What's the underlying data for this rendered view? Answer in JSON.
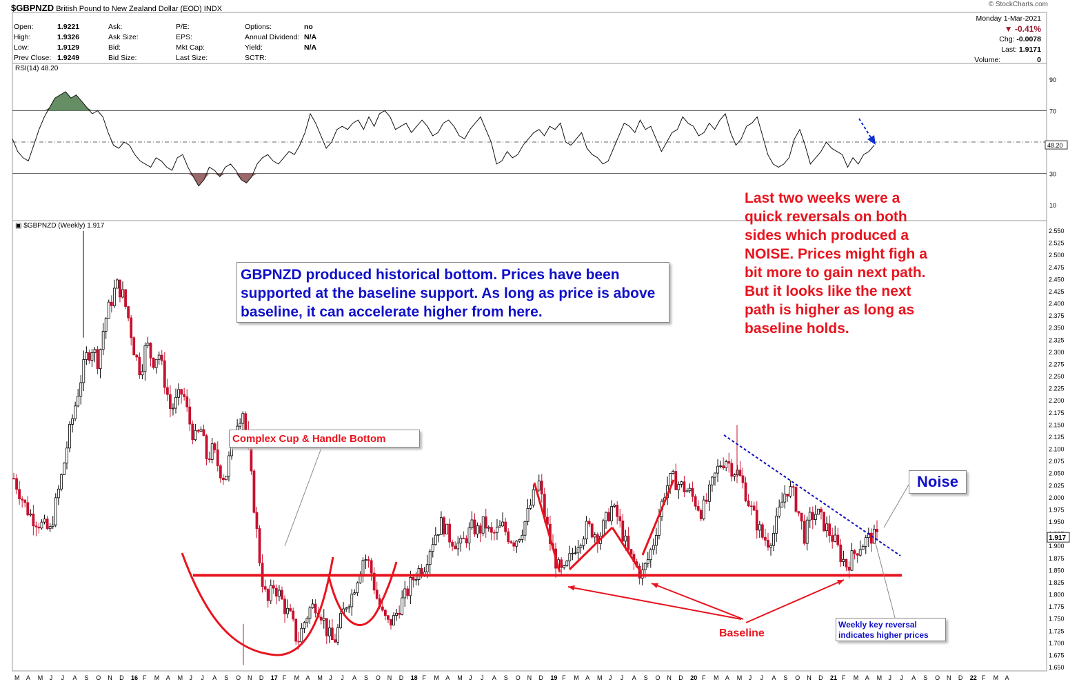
{
  "header": {
    "symbol": "$GBPNZD",
    "name": "British Pound to New Zealand Dollar (EOD)",
    "exchange": "INDX",
    "brand": "© StockCharts.com",
    "date": "Monday  1-Mar-2021",
    "pct_change": "▼  -0.41%",
    "chg_label": "Chg:",
    "chg_value": "-0.0078",
    "last_label": "Last:",
    "last_value": "1.9171",
    "volume_label": "Volume:",
    "volume_value": "0",
    "stats": [
      {
        "label": "Open:",
        "value": "1.9221"
      },
      {
        "label": "High:",
        "value": "1.9326"
      },
      {
        "label": "Low:",
        "value": "1.9129"
      },
      {
        "label": "Prev Close:",
        "value": "1.9249"
      },
      {
        "label": "Ask:",
        "value": ""
      },
      {
        "label": "Ask Size:",
        "value": ""
      },
      {
        "label": "Bid:",
        "value": ""
      },
      {
        "label": "Bid Size:",
        "value": ""
      },
      {
        "label": "P/E:",
        "value": ""
      },
      {
        "label": "EPS:",
        "value": ""
      },
      {
        "label": "Mkt Cap:",
        "value": ""
      },
      {
        "label": "Last Size:",
        "value": ""
      },
      {
        "label": "Options:",
        "value": "no"
      },
      {
        "label": "Annual Dividend:",
        "value": "N/A"
      },
      {
        "label": "Yield:",
        "value": "N/A"
      },
      {
        "label": "SCTR:",
        "value": ""
      }
    ]
  },
  "annotations": {
    "blue_note": "GBPNZD produced historical bottom. Prices have been supported at the baseline support. As long as price is above baseline, it can accelerate higher from here.",
    "red_note": "Last two weeks were a\nquick reversals on both\nsides which produced a\nNOISE. Prices might figh a\nbit more to gain next path.\nBut it looks like the next\npath is higher as long as\nbaseline holds.",
    "cup_label": "Complex Cup & Handle Bottom",
    "noise_label": "Noise",
    "reversal_label": "Weekly key reversal indicates higher prices",
    "baseline_label": "Baseline"
  },
  "colors": {
    "up": "#000000",
    "down": "#c8102e",
    "annot_red": "#e8141e",
    "annot_blue": "#1010c8",
    "rsi_over": "#4a7a4a",
    "rsi_under": "#8b5050"
  },
  "chart_data": [
    {
      "type": "line",
      "title": "RSI(14) 48.20",
      "ylim": [
        0,
        100
      ],
      "yticks": [
        10,
        30,
        70,
        90
      ],
      "reference_lines": [
        30,
        50,
        70
      ],
      "last_value": "48.20",
      "series": [
        {
          "name": "RSI(14)",
          "values": [
            52,
            44,
            40,
            38,
            48,
            58,
            66,
            72,
            78,
            80,
            82,
            78,
            80,
            76,
            72,
            68,
            70,
            66,
            56,
            48,
            46,
            50,
            48,
            42,
            38,
            36,
            34,
            40,
            38,
            34,
            32,
            40,
            42,
            34,
            28,
            22,
            26,
            34,
            32,
            28,
            34,
            36,
            32,
            26,
            24,
            28,
            36,
            40,
            42,
            38,
            36,
            40,
            44,
            42,
            48,
            56,
            68,
            62,
            54,
            46,
            50,
            58,
            60,
            58,
            62,
            64,
            58,
            66,
            60,
            68,
            70,
            66,
            58,
            60,
            62,
            56,
            60,
            64,
            60,
            54,
            56,
            62,
            64,
            60,
            54,
            52,
            58,
            62,
            66,
            58,
            50,
            36,
            38,
            44,
            40,
            42,
            48,
            52,
            56,
            58,
            54,
            60,
            58,
            62,
            50,
            48,
            52,
            56,
            46,
            42,
            40,
            36,
            38,
            46,
            54,
            62,
            60,
            56,
            64,
            58,
            60,
            52,
            44,
            50,
            56,
            58,
            66,
            62,
            60,
            54,
            56,
            62,
            58,
            64,
            68,
            56,
            48,
            52,
            60,
            62,
            66,
            54,
            42,
            36,
            34,
            36,
            40,
            52,
            58,
            48,
            36,
            40,
            44,
            50,
            46,
            44,
            42,
            34,
            40,
            36,
            42,
            44,
            48
          ]
        }
      ]
    },
    {
      "type": "candlestick",
      "title": "$GBPNZD (Weekly) 1.917",
      "ylim": [
        1.65,
        2.55
      ],
      "yticks": [
        1.65,
        1.675,
        1.7,
        1.725,
        1.75,
        1.775,
        1.8,
        1.825,
        1.85,
        1.875,
        1.9,
        1.925,
        1.95,
        1.975,
        2.0,
        2.025,
        2.05,
        2.075,
        2.1,
        2.125,
        2.15,
        2.175,
        2.2,
        2.225,
        2.25,
        2.275,
        2.3,
        2.325,
        2.35,
        2.375,
        2.4,
        2.425,
        2.45,
        2.475,
        2.5,
        2.525,
        2.55
      ],
      "x_labels": [
        "M",
        "A",
        "M",
        "J",
        "J",
        "A",
        "S",
        "O",
        "N",
        "D",
        "16",
        "F",
        "M",
        "A",
        "M",
        "J",
        "J",
        "A",
        "S",
        "O",
        "N",
        "D",
        "17",
        "F",
        "M",
        "A",
        "M",
        "J",
        "J",
        "A",
        "S",
        "O",
        "N",
        "D",
        "18",
        "F",
        "M",
        "A",
        "M",
        "J",
        "J",
        "A",
        "S",
        "O",
        "N",
        "D",
        "19",
        "F",
        "M",
        "A",
        "M",
        "J",
        "J",
        "A",
        "S",
        "O",
        "N",
        "D",
        "20",
        "F",
        "M",
        "A",
        "M",
        "J",
        "J",
        "A",
        "S",
        "O",
        "N",
        "D",
        "21",
        "F",
        "M",
        "A",
        "M",
        "J",
        "J",
        "A",
        "S",
        "O",
        "N",
        "D",
        "22",
        "F",
        "M",
        "A"
      ],
      "last_value": "1.917",
      "baseline": 1.84,
      "closes": [
        2.04,
        2.01,
        1.98,
        1.96,
        1.95,
        1.94,
        1.93,
        1.99,
        2.05,
        2.12,
        2.18,
        2.24,
        2.29,
        2.31,
        2.28,
        2.36,
        2.4,
        2.44,
        2.42,
        2.37,
        2.3,
        2.26,
        2.32,
        2.28,
        2.3,
        2.24,
        2.18,
        2.2,
        2.22,
        2.16,
        2.12,
        2.14,
        2.08,
        2.1,
        2.06,
        2.04,
        2.1,
        2.16,
        2.18,
        2.08,
        1.96,
        1.84,
        1.78,
        1.82,
        1.8,
        1.77,
        1.75,
        1.7,
        1.74,
        1.77,
        1.78,
        1.76,
        1.72,
        1.7,
        1.74,
        1.78,
        1.8,
        1.84,
        1.88,
        1.86,
        1.8,
        1.76,
        1.74,
        1.75,
        1.78,
        1.8,
        1.83,
        1.85,
        1.86,
        1.9,
        1.93,
        1.95,
        1.92,
        1.91,
        1.9,
        1.92,
        1.94,
        1.93,
        1.95,
        1.92,
        1.93,
        1.94,
        1.92,
        1.91,
        1.93,
        1.96,
        2.0,
        2.03,
        1.96,
        1.9,
        1.86,
        1.84,
        1.87,
        1.9,
        1.92,
        1.94,
        1.93,
        1.92,
        1.95,
        1.98,
        1.96,
        1.92,
        1.88,
        1.86,
        1.84,
        1.87,
        1.91,
        1.97,
        2.02,
        2.04,
        2.03,
        2.02,
        2.01,
        1.99,
        1.97,
        2.0,
        2.04,
        2.07,
        2.08,
        2.06,
        2.05,
        2.02,
        1.98,
        1.95,
        1.92,
        1.91,
        1.93,
        1.98,
        2.02,
        2.01,
        1.97,
        1.92,
        1.96,
        1.97,
        1.95,
        1.93,
        1.91,
        1.88,
        1.86,
        1.88,
        1.9,
        1.91,
        1.92,
        1.917
      ]
    }
  ]
}
